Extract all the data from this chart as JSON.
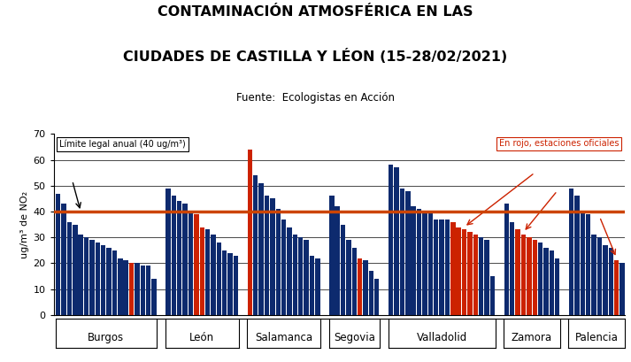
{
  "title_line1": "CONTAMINACIÓN ATMOSFÉRICA EN LAS",
  "title_line2": "CIUDADES DE CASTILLA Y LÉON (15-28/02/2021)",
  "subtitle": "Fuente:  Ecologistas en Acción",
  "ylabel": "ug/m³ de NO₂",
  "ylim": [
    0,
    70
  ],
  "yticks": [
    0,
    10,
    20,
    30,
    40,
    50,
    60,
    70
  ],
  "limit_value": 40,
  "limit_label": "Límite legal anual (40 ug/m³)",
  "red_note": "En rojo, estaciones oficiales",
  "bar_color": "#0d2a6e",
  "red_color": "#cc2200",
  "limit_color": "#cc4400",
  "cities": [
    "Burgos",
    "León",
    "Salamanca",
    "Segovia",
    "Valladolid",
    "Zamora",
    "Palencia"
  ],
  "bars": [
    {
      "city": "Burgos",
      "values": [
        47,
        43,
        36,
        35,
        31,
        30,
        29,
        28,
        27,
        26,
        25,
        22,
        21,
        20,
        20,
        19,
        19,
        14
      ],
      "red_indices": [
        13
      ]
    },
    {
      "city": "León",
      "values": [
        49,
        46,
        44,
        43,
        40,
        39,
        34,
        33,
        31,
        28,
        25,
        24,
        23
      ],
      "red_indices": [
        5,
        6
      ]
    },
    {
      "city": "Salamanca",
      "values": [
        64,
        54,
        51,
        46,
        45,
        41,
        37,
        34,
        31,
        30,
        29,
        23,
        22
      ],
      "red_indices": [
        0
      ]
    },
    {
      "city": "Segovia",
      "values": [
        46,
        42,
        35,
        29,
        26,
        22,
        21,
        17,
        14
      ],
      "red_indices": [
        5
      ]
    },
    {
      "city": "Valladolid",
      "values": [
        58,
        57,
        49,
        48,
        42,
        41,
        40,
        40,
        37,
        37,
        37,
        36,
        34,
        33,
        32,
        31,
        30,
        29,
        15
      ],
      "red_indices": [
        11,
        12,
        13,
        14,
        15
      ]
    },
    {
      "city": "Zamora",
      "values": [
        43,
        36,
        33,
        31,
        30,
        29,
        28,
        26,
        25,
        22
      ],
      "red_indices": [
        2,
        3,
        4,
        5
      ]
    },
    {
      "city": "Palencia",
      "values": [
        49,
        46,
        40,
        39,
        31,
        30,
        27,
        26,
        21,
        20
      ],
      "red_indices": [
        8
      ]
    }
  ],
  "background_color": "#ffffff"
}
